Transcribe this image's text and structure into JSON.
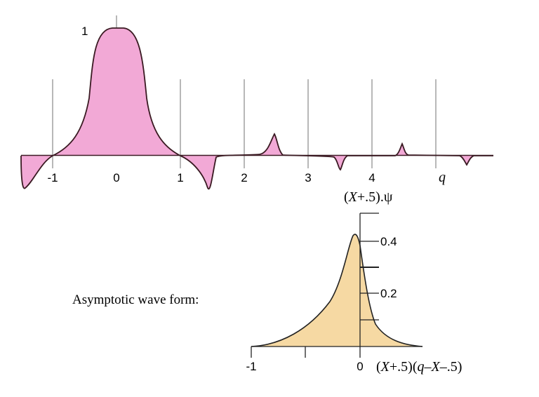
{
  "top_plot": {
    "fill_color": "#f2a9d6",
    "outline_color": "#3a1a22",
    "grid_color": "#888888",
    "ticks": [
      "-1",
      "0",
      "1",
      "2",
      "3",
      "4"
    ],
    "peak_label": "1",
    "axis_var": "q"
  },
  "caption": {
    "label": "Asymptotic wave form:"
  },
  "bottom_plot": {
    "fill_color": "#f6d9a3",
    "outline_color": "#222222",
    "y_title_prefix": "(",
    "y_title_var": "X",
    "y_title_rest": "+.5).",
    "y_title_psi": "ψ",
    "y_ticks": [
      "0.4",
      "0.2"
    ],
    "x_ticks": [
      "-1",
      "0"
    ],
    "x_title_a": "(",
    "x_title_b": "X",
    "x_title_c": "+.5)(",
    "x_title_d": "q",
    "x_title_e": "–",
    "x_title_f": "X",
    "x_title_g": "–.5)"
  }
}
